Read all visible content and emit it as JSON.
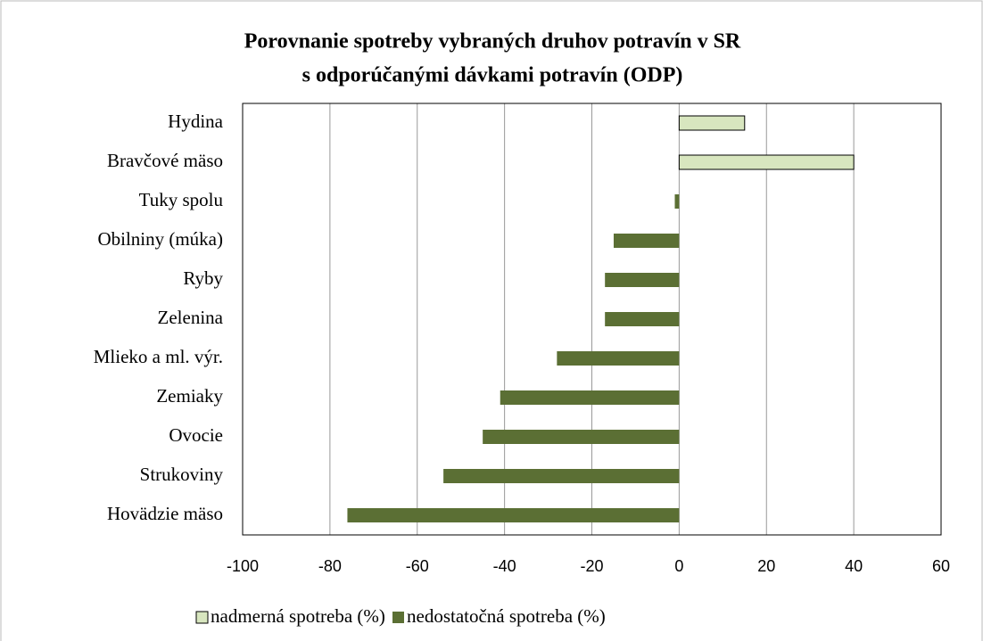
{
  "chart_data": {
    "type": "bar",
    "orientation": "horizontal",
    "title": [
      "Porovnanie spotreby vybraných druhov potravín v SR",
      "s odporúčanými dávkami potravín (ODP)"
    ],
    "categories": [
      "Hydina",
      "Bravčové mäso",
      "Tuky spolu",
      "Obilniny (múka)",
      "Ryby",
      "Zelenina",
      "Mlieko a ml. výr.",
      "Zemiaky",
      "Ovocie",
      "Strukoviny",
      "Hovädzie mäso"
    ],
    "series": [
      {
        "name": "nadmerná spotreba (%)",
        "color": "#d8e6bf",
        "values": [
          15,
          40,
          null,
          null,
          null,
          null,
          null,
          null,
          null,
          null,
          null
        ]
      },
      {
        "name": "nedostatočná spotreba (%)",
        "color": "#5b6f34",
        "values": [
          null,
          null,
          -1,
          -15,
          -17,
          -17,
          -28,
          -41,
          -45,
          -54,
          -76
        ]
      }
    ],
    "xlim": [
      -100,
      60
    ],
    "xticks": [
      -100,
      -80,
      -60,
      -40,
      -20,
      0,
      20,
      40,
      60
    ],
    "grid": true,
    "legend": "bottom"
  }
}
